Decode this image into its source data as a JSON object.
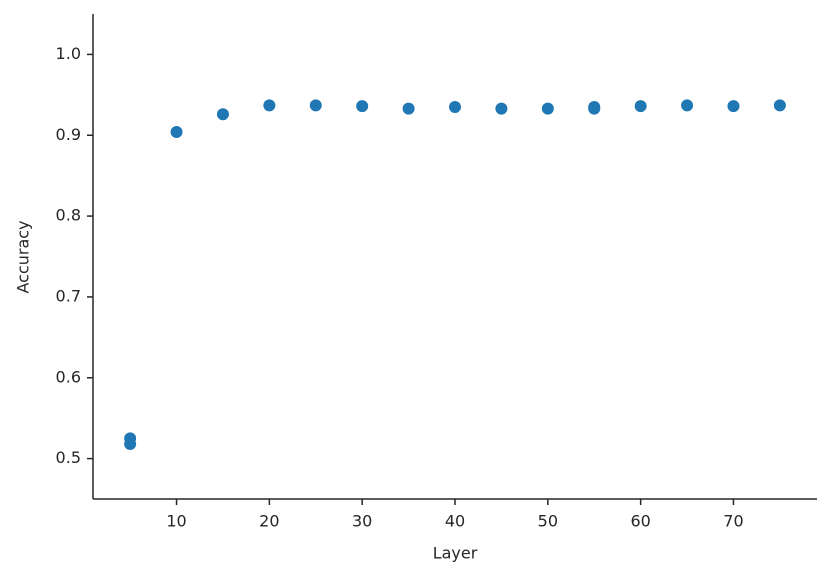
{
  "chart_data": {
    "type": "scatter",
    "x_label": "Layer",
    "y_label": "Accuracy",
    "series": [
      {
        "color": "#1f77b4",
        "x": [
          5,
          5,
          10,
          15,
          20,
          25,
          30,
          35,
          40,
          45,
          50,
          55,
          55,
          60,
          65,
          70,
          75
        ],
        "values": [
          0.525,
          0.518,
          0.904,
          0.926,
          0.937,
          0.937,
          0.936,
          0.933,
          0.935,
          0.933,
          0.933,
          0.935,
          0.933,
          0.936,
          0.937,
          0.936,
          0.937
        ]
      }
    ],
    "xlim": [
      1,
      79
    ],
    "xticks": [
      10,
      20,
      30,
      40,
      50,
      60,
      70
    ],
    "ylim": [
      0.45,
      1.05
    ],
    "yticks": [
      0.5,
      0.6,
      0.7,
      0.8,
      0.9,
      {
        "value": 1,
        "label": "1.0"
      }
    ],
    "grid": false
  }
}
